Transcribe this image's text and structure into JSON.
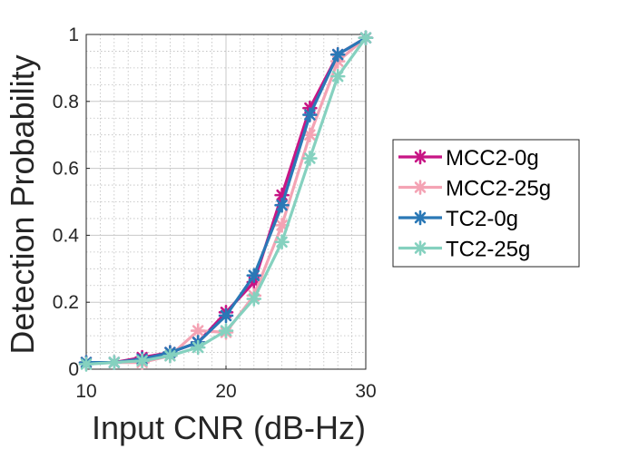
{
  "chart_data": {
    "type": "line",
    "title": "",
    "xlabel": "Input CNR (dB-Hz)",
    "ylabel": "Detection Probability",
    "xlim": [
      10,
      30
    ],
    "ylim": [
      0,
      1
    ],
    "xticks": [
      10,
      20,
      30
    ],
    "yticks": [
      0,
      0.2,
      0.4,
      0.6,
      0.8,
      1
    ],
    "xtick_labels": [
      "10",
      "20",
      "30"
    ],
    "ytick_labels": [
      "0",
      "0.2",
      "0.4",
      "0.6",
      "0.8",
      "1"
    ],
    "grid": true,
    "minor_grid": true,
    "legend_position": "right",
    "x": [
      10,
      12,
      14,
      16,
      18,
      20,
      22,
      24,
      26,
      28,
      30
    ],
    "series": [
      {
        "name": "MCC2-0g",
        "color": "#c71585",
        "values": [
          0.02,
          0.02,
          0.035,
          0.05,
          0.08,
          0.17,
          0.26,
          0.52,
          0.78,
          0.94,
          0.99
        ]
      },
      {
        "name": "MCC2-25g",
        "color": "#f4a3b4",
        "values": [
          0.02,
          0.02,
          0.02,
          0.04,
          0.115,
          0.11,
          0.22,
          0.43,
          0.7,
          0.92,
          0.99
        ]
      },
      {
        "name": "TC2-0g",
        "color": "#2a78b6",
        "values": [
          0.02,
          0.02,
          0.03,
          0.05,
          0.08,
          0.16,
          0.28,
          0.49,
          0.76,
          0.94,
          0.99
        ]
      },
      {
        "name": "TC2-25g",
        "color": "#85d1bf",
        "values": [
          0.015,
          0.02,
          0.025,
          0.04,
          0.065,
          0.115,
          0.21,
          0.38,
          0.63,
          0.875,
          0.99
        ]
      }
    ]
  }
}
